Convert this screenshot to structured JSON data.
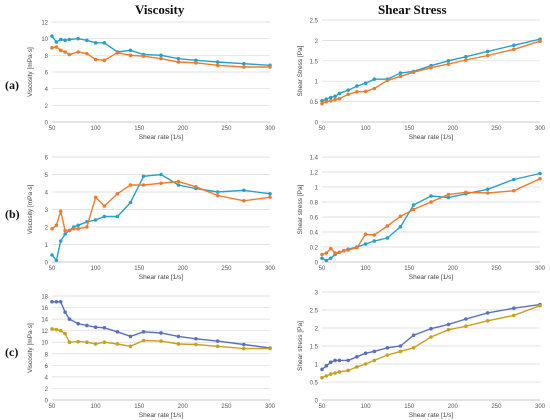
{
  "headers": {
    "left": "Viscosity",
    "right": "Shear Stress"
  },
  "row_labels": [
    "(a)",
    "(b)",
    "(c)"
  ],
  "chart_data": [
    {
      "type": "line",
      "xlabel": "Shear rate [1/s]",
      "ylabel": "Viscosity [mPa·s]",
      "xlim": [
        50,
        300
      ],
      "ylim": [
        0,
        12
      ],
      "xticks": [
        50,
        100,
        150,
        200,
        250,
        300
      ],
      "yticks": [
        0,
        2,
        4,
        6,
        8,
        10,
        12
      ],
      "grid": true,
      "series": [
        {
          "color": "#2aa0c8",
          "x": [
            50,
            55,
            60,
            65,
            70,
            80,
            90,
            100,
            110,
            125,
            140,
            155,
            175,
            195,
            215,
            240,
            270,
            300
          ],
          "y": [
            10.3,
            9.6,
            9.9,
            9.8,
            9.9,
            10.0,
            9.8,
            9.5,
            9.5,
            8.4,
            8.6,
            8.1,
            8.0,
            7.6,
            7.4,
            7.2,
            7.0,
            6.8
          ]
        },
        {
          "color": "#f07a2a",
          "x": [
            50,
            55,
            60,
            65,
            70,
            80,
            90,
            100,
            110,
            125,
            140,
            155,
            175,
            195,
            215,
            240,
            270,
            300
          ],
          "y": [
            8.9,
            9.0,
            8.6,
            8.4,
            8.1,
            8.4,
            8.2,
            7.5,
            7.4,
            8.3,
            8.0,
            7.9,
            7.6,
            7.2,
            7.1,
            6.8,
            6.6,
            6.6
          ]
        }
      ]
    },
    {
      "type": "line",
      "xlabel": "Shear rate [1/s]",
      "ylabel": "Shear Stress [Pa]",
      "xlim": [
        50,
        300
      ],
      "ylim": [
        0,
        2.5
      ],
      "xticks": [
        50,
        100,
        150,
        200,
        250,
        300
      ],
      "yticks": [
        0,
        0.5,
        1,
        1.5,
        2,
        2.5
      ],
      "grid": true,
      "series": [
        {
          "color": "#2aa0c8",
          "x": [
            50,
            55,
            60,
            65,
            70,
            80,
            90,
            100,
            110,
            125,
            140,
            155,
            175,
            195,
            215,
            240,
            270,
            300
          ],
          "y": [
            0.52,
            0.56,
            0.6,
            0.63,
            0.7,
            0.78,
            0.88,
            0.95,
            1.05,
            1.05,
            1.2,
            1.24,
            1.38,
            1.5,
            1.6,
            1.73,
            1.88,
            2.03
          ]
        },
        {
          "color": "#f07a2a",
          "x": [
            50,
            55,
            60,
            65,
            70,
            80,
            90,
            100,
            110,
            125,
            140,
            155,
            175,
            195,
            215,
            240,
            270,
            300
          ],
          "y": [
            0.45,
            0.5,
            0.52,
            0.55,
            0.57,
            0.68,
            0.74,
            0.75,
            0.82,
            1.02,
            1.12,
            1.22,
            1.33,
            1.42,
            1.52,
            1.63,
            1.78,
            1.98
          ]
        }
      ]
    },
    {
      "type": "line",
      "xlabel": "Shear rate [1/s]",
      "ylabel": "Viscosity [mPa·s]",
      "xlim": [
        50,
        300
      ],
      "ylim": [
        0,
        6
      ],
      "xticks": [
        50,
        100,
        150,
        200,
        250,
        300
      ],
      "yticks": [
        0,
        1,
        2,
        3,
        4,
        5,
        6
      ],
      "grid": true,
      "series": [
        {
          "color": "#2aa0c8",
          "x": [
            50,
            55,
            60,
            65,
            70,
            75,
            80,
            90,
            100,
            110,
            125,
            140,
            155,
            175,
            195,
            215,
            240,
            270,
            300
          ],
          "y": [
            0.4,
            0.1,
            1.2,
            1.6,
            1.8,
            2.0,
            2.1,
            2.3,
            2.4,
            2.6,
            2.6,
            3.4,
            4.9,
            5.0,
            4.4,
            4.2,
            4.0,
            4.1,
            3.9
          ]
        },
        {
          "color": "#f07a2a",
          "x": [
            50,
            55,
            60,
            65,
            70,
            75,
            80,
            90,
            100,
            110,
            125,
            140,
            155,
            175,
            195,
            215,
            240,
            270,
            300
          ],
          "y": [
            1.9,
            2.1,
            2.9,
            1.8,
            1.8,
            1.9,
            1.9,
            2.0,
            3.7,
            3.2,
            3.9,
            4.4,
            4.4,
            4.5,
            4.6,
            4.3,
            3.8,
            3.5,
            3.7
          ]
        }
      ]
    },
    {
      "type": "line",
      "xlabel": "Shear rate [1/s]",
      "ylabel": "Shear stress [Pa]",
      "xlim": [
        50,
        300
      ],
      "ylim": [
        0,
        1.4
      ],
      "xticks": [
        50,
        100,
        150,
        200,
        250,
        300
      ],
      "yticks": [
        0,
        0.2,
        0.4,
        0.6,
        0.8,
        1,
        1.2,
        1.4
      ],
      "grid": true,
      "series": [
        {
          "color": "#2aa0c8",
          "x": [
            50,
            55,
            60,
            65,
            70,
            75,
            80,
            90,
            100,
            110,
            125,
            140,
            155,
            175,
            195,
            215,
            240,
            270,
            300
          ],
          "y": [
            0.05,
            0.02,
            0.05,
            0.1,
            0.13,
            0.15,
            0.17,
            0.2,
            0.24,
            0.28,
            0.32,
            0.47,
            0.76,
            0.88,
            0.86,
            0.91,
            0.97,
            1.1,
            1.18
          ]
        },
        {
          "color": "#f07a2a",
          "x": [
            50,
            55,
            60,
            65,
            70,
            75,
            80,
            90,
            100,
            110,
            125,
            140,
            155,
            175,
            195,
            215,
            240,
            270,
            300
          ],
          "y": [
            0.1,
            0.12,
            0.18,
            0.12,
            0.13,
            0.15,
            0.16,
            0.19,
            0.37,
            0.36,
            0.48,
            0.61,
            0.7,
            0.8,
            0.9,
            0.93,
            0.92,
            0.95,
            1.11
          ]
        }
      ]
    },
    {
      "type": "line",
      "xlabel": "Shear rate [1/s]",
      "ylabel": "Viscosity [mPa·s]",
      "xlim": [
        50,
        300
      ],
      "ylim": [
        0,
        18
      ],
      "xticks": [
        50,
        100,
        150,
        200,
        250,
        300
      ],
      "yticks": [
        0,
        2,
        4,
        6,
        8,
        10,
        12,
        14,
        16,
        18
      ],
      "grid": true,
      "series": [
        {
          "color": "#5a6fc4",
          "x": [
            50,
            55,
            60,
            65,
            70,
            80,
            90,
            100,
            110,
            125,
            140,
            155,
            175,
            195,
            215,
            240,
            270,
            300
          ],
          "y": [
            17.0,
            17.0,
            17.0,
            15.2,
            14.0,
            13.2,
            12.9,
            12.6,
            12.5,
            11.8,
            11.0,
            11.8,
            11.6,
            11.0,
            10.6,
            10.2,
            9.6,
            9.0
          ]
        },
        {
          "color": "#c8a020",
          "x": [
            50,
            55,
            60,
            65,
            70,
            80,
            90,
            100,
            110,
            125,
            140,
            155,
            175,
            195,
            215,
            240,
            270,
            300
          ],
          "y": [
            12.3,
            12.2,
            12.0,
            11.5,
            10.0,
            10.1,
            10.0,
            9.7,
            10.0,
            9.7,
            9.3,
            10.3,
            10.2,
            9.7,
            9.6,
            9.3,
            8.9,
            8.9
          ]
        }
      ]
    },
    {
      "type": "line",
      "xlabel": "Shear rate [1/s]",
      "ylabel": "Shear stress [Pa]",
      "xlim": [
        50,
        300
      ],
      "ylim": [
        0,
        3
      ],
      "xticks": [
        50,
        100,
        150,
        200,
        250,
        300
      ],
      "yticks": [
        0,
        0.5,
        1,
        1.5,
        2,
        2.5,
        3
      ],
      "grid": true,
      "series": [
        {
          "color": "#5a6fc4",
          "x": [
            50,
            55,
            60,
            65,
            70,
            80,
            90,
            100,
            110,
            125,
            140,
            155,
            175,
            195,
            215,
            240,
            270,
            300
          ],
          "y": [
            0.85,
            0.95,
            1.05,
            1.1,
            1.1,
            1.1,
            1.2,
            1.3,
            1.35,
            1.45,
            1.5,
            1.8,
            1.98,
            2.1,
            2.25,
            2.42,
            2.55,
            2.65
          ]
        },
        {
          "color": "#c8a020",
          "x": [
            50,
            55,
            60,
            65,
            70,
            80,
            90,
            100,
            110,
            125,
            140,
            155,
            175,
            195,
            215,
            240,
            270,
            300
          ],
          "y": [
            0.62,
            0.67,
            0.72,
            0.75,
            0.78,
            0.82,
            0.92,
            1.0,
            1.1,
            1.25,
            1.35,
            1.45,
            1.75,
            1.95,
            2.05,
            2.2,
            2.35,
            2.62
          ]
        }
      ]
    }
  ]
}
